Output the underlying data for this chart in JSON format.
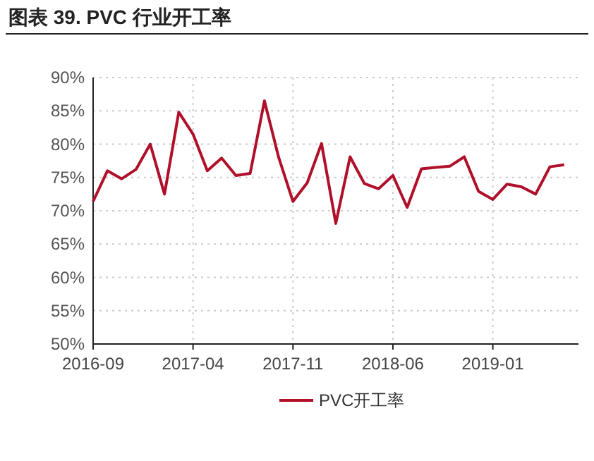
{
  "chart_data": {
    "type": "line",
    "title": "图表 39. PVC 行业开工率",
    "x": [
      "2016-09",
      "2016-10",
      "2016-11",
      "2016-12",
      "2017-01",
      "2017-02",
      "2017-03",
      "2017-04",
      "2017-05",
      "2017-06",
      "2017-07",
      "2017-08",
      "2017-09",
      "2017-10",
      "2017-11",
      "2017-12",
      "2018-01",
      "2018-02",
      "2018-03",
      "2018-04",
      "2018-05",
      "2018-06",
      "2018-07",
      "2018-08",
      "2018-09",
      "2018-10",
      "2018-11",
      "2018-12",
      "2019-01",
      "2019-02",
      "2019-03",
      "2019-04",
      "2019-05",
      "2019-06"
    ],
    "series": [
      {
        "name": "PVC开工率",
        "color": "#b0102a",
        "values": [
          71.4,
          76.0,
          74.8,
          76.2,
          80.0,
          72.5,
          84.8,
          81.5,
          76.0,
          77.9,
          75.3,
          75.6,
          86.5,
          78.0,
          71.4,
          74.2,
          80.1,
          68.1,
          78.1,
          74.1,
          73.3,
          75.3,
          70.5,
          76.3,
          76.5,
          76.7,
          78.1,
          72.9,
          71.7,
          74.0,
          73.6,
          72.5,
          76.6,
          76.9
        ]
      }
    ],
    "xlim": [
      "2016-09",
      "2019-07"
    ],
    "xticks": [
      "2016-09",
      "2017-04",
      "2017-11",
      "2018-06",
      "2019-01"
    ],
    "ylim": [
      50,
      90
    ],
    "yticks": [
      {
        "value": 50,
        "label": "50%"
      },
      {
        "value": 55,
        "label": "55%"
      },
      {
        "value": 60,
        "label": "60%"
      },
      {
        "value": 65,
        "label": "65%"
      },
      {
        "value": 70,
        "label": "70%"
      },
      {
        "value": 75,
        "label": "75%"
      },
      {
        "value": 80,
        "label": "80%"
      },
      {
        "value": 85,
        "label": "85%"
      },
      {
        "value": 90,
        "label": "90%"
      }
    ],
    "grid": true,
    "legend": "bottom",
    "marker": "none",
    "line_style": "solid"
  }
}
